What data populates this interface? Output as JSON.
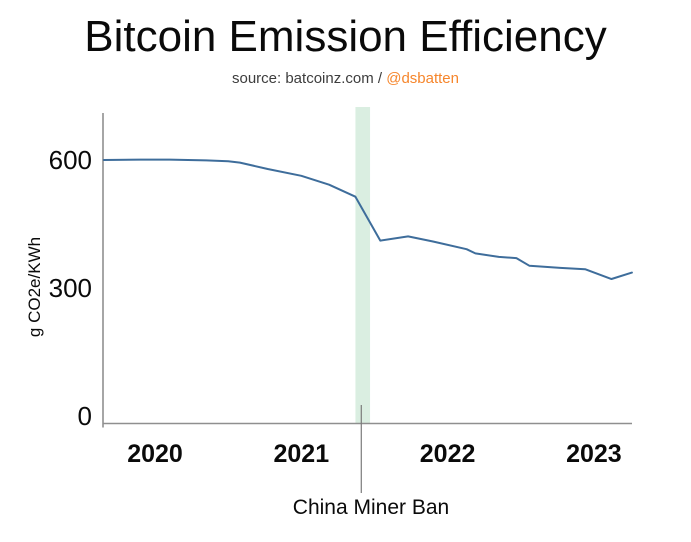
{
  "title": "Bitcoin Emission Efficiency",
  "subtitle": {
    "source_text": "source: batcoinz.com / ",
    "handle": "@dsbatten"
  },
  "colors": {
    "title_text": "#0a0a0a",
    "subtitle_text": "#3d3d3d",
    "handle_orange": "#f6862c",
    "line_blue": "#3e6d9b",
    "band_green": "#daeee1",
    "axis_gray": "#8f8f8f",
    "annotation_gray": "#7a7a7a",
    "tick_text": "#0a0a0a"
  },
  "chart_data": {
    "type": "line",
    "title": "Bitcoin Emission Efficiency",
    "ylabel": "g CO2e/KWh",
    "xlabel": "",
    "x_ticks": [
      "2020",
      "2021",
      "2022",
      "2023"
    ],
    "y_ticks": [
      600,
      300,
      0
    ],
    "xlim": [
      2019.64,
      2023.27
    ],
    "ylim": [
      0,
      724
    ],
    "grid": false,
    "legend": false,
    "series": [
      {
        "name": "g CO2e/KWh",
        "x": [
          2019.65,
          2019.9,
          2020.1,
          2020.35,
          2020.5,
          2020.58,
          2020.77,
          2021.0,
          2021.19,
          2021.37,
          2021.54,
          2021.73,
          2021.9,
          2022.13,
          2022.19,
          2022.35,
          2022.47,
          2022.56,
          2022.77,
          2022.94,
          2023.12,
          2023.26
        ],
        "y": [
          600,
          601,
          601,
          599,
          597,
          594,
          579,
          563,
          542,
          514,
          411,
          421,
          409,
          391,
          381,
          373,
          370,
          352,
          347,
          344,
          321,
          336
        ]
      }
    ],
    "annotations": {
      "band": {
        "label": "China Miner Ban",
        "x_start": 2021.37,
        "x_end": 2021.47
      },
      "line_x": 2021.41
    }
  }
}
